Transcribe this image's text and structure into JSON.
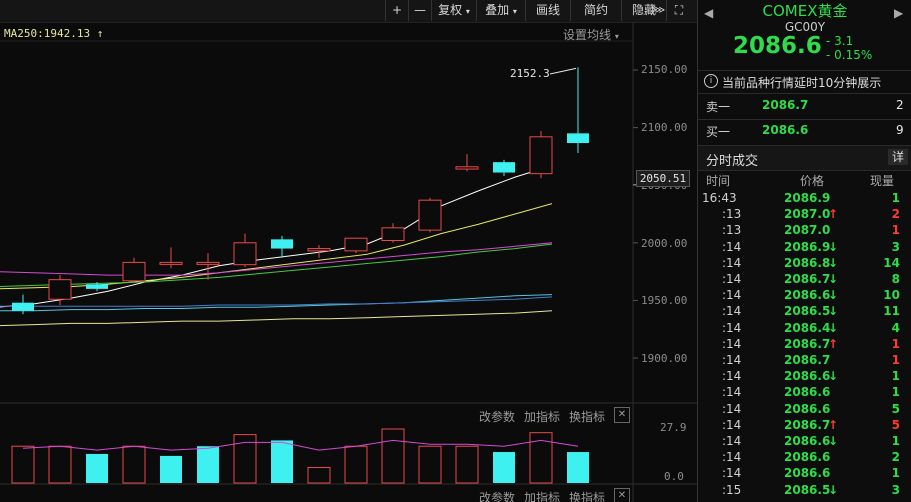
{
  "toolbar": {
    "zoom_in": "+",
    "zoom_out": "—",
    "fuquan": "复权",
    "overlay": "叠加",
    "draw": "画线",
    "simple": "简约",
    "hide": "隐藏",
    "more": "⋙",
    "fullscreen": "⛶"
  },
  "ma_label": "MA250:1942.13",
  "settings_label": "设置均线",
  "price_axis": [
    "2150.00",
    "2100.00",
    "2050.00",
    "2000.00",
    "1950.00",
    "1900.00"
  ],
  "crosshair_price": "2050.51",
  "max_annotation": "2152.3",
  "volume_axis": [
    "27.9",
    "0.0"
  ],
  "indicator_buttons": {
    "change_params": "改参数",
    "add_indicator": "加指标",
    "switch_indicator": "换指标",
    "close": "✕"
  },
  "chart_data": {
    "type": "candlestick",
    "ylim": [
      1880,
      2170
    ],
    "candles": [
      {
        "o": 1948,
        "h": 1955,
        "l": 1938,
        "c": 1941
      },
      {
        "o": 1951,
        "h": 1972,
        "l": 1946,
        "c": 1968
      },
      {
        "o": 1964,
        "h": 1966,
        "l": 1958,
        "c": 1960
      },
      {
        "o": 1967,
        "h": 1987,
        "l": 1965,
        "c": 1983
      },
      {
        "o": 1983,
        "h": 1996,
        "l": 1978,
        "c": 1983
      },
      {
        "o": 1983,
        "h": 1991,
        "l": 1968,
        "c": 1983
      },
      {
        "o": 1981,
        "h": 2008,
        "l": 1979,
        "c": 2000
      },
      {
        "o": 2003,
        "h": 2006,
        "l": 1987,
        "c": 1995
      },
      {
        "o": 1993,
        "h": 1998,
        "l": 1987,
        "c": 1995
      },
      {
        "o": 1993,
        "h": 2004,
        "l": 1991,
        "c": 2004
      },
      {
        "o": 2002,
        "h": 2017,
        "l": 2000,
        "c": 2013
      },
      {
        "o": 2011,
        "h": 2039,
        "l": 2009,
        "c": 2037
      },
      {
        "o": 2064,
        "h": 2077,
        "l": 2062,
        "c": 2066
      },
      {
        "o": 2070,
        "h": 2072,
        "l": 2058,
        "c": 2061
      },
      {
        "o": 2060,
        "h": 2097,
        "l": 2056,
        "c": 2092
      },
      {
        "o": 2095,
        "h": 2152.3,
        "l": 2078,
        "c": 2086.6
      }
    ],
    "ma_lines": [
      {
        "color": "#ffffff",
        "values": [
          1944,
          1947,
          1952,
          1958,
          1966,
          1972,
          1980,
          1985,
          1989,
          1993,
          1999,
          2012,
          2032,
          2045,
          2057,
          2067
        ]
      },
      {
        "color": "#e8e85a",
        "values": [
          1960,
          1961,
          1962,
          1964,
          1967,
          1970,
          1974,
          1978,
          1982,
          1986,
          1990,
          1998,
          2008,
          2016,
          2025,
          2034
        ]
      },
      {
        "color": "#d44ad4",
        "values": [
          1975,
          1974,
          1973,
          1972,
          1972,
          1972,
          1974,
          1977,
          1980,
          1983,
          1986,
          1989,
          1992,
          1994,
          1997,
          2000
        ]
      },
      {
        "color": "#46c846",
        "values": [
          1962,
          1963,
          1964,
          1965,
          1966,
          1968,
          1970,
          1973,
          1976,
          1979,
          1982,
          1985,
          1988,
          1992,
          1995,
          1999
        ]
      },
      {
        "color": "#50c8dc",
        "values": [
          1941,
          1941,
          1942,
          1942,
          1943,
          1943,
          1944,
          1944,
          1945,
          1946,
          1947,
          1948,
          1950,
          1952,
          1954,
          1955
        ]
      },
      {
        "color": "#4a7ad0",
        "values": [
          1945,
          1945,
          1945,
          1945,
          1945,
          1945,
          1946,
          1946,
          1946,
          1947,
          1947,
          1948,
          1949,
          1950,
          1951,
          1953
        ]
      },
      {
        "color": "#e6e696",
        "values": [
          1928,
          1929,
          1930,
          1930,
          1931,
          1932,
          1932,
          1933,
          1934,
          1934,
          1935,
          1936,
          1937,
          1938,
          1939,
          1941
        ]
      }
    ],
    "volumes": [
      {
        "v": 19,
        "up": true
      },
      {
        "v": 19,
        "up": true
      },
      {
        "v": 15,
        "up": false
      },
      {
        "v": 19,
        "up": true
      },
      {
        "v": 14,
        "up": false
      },
      {
        "v": 19,
        "up": false
      },
      {
        "v": 25,
        "up": true
      },
      {
        "v": 22,
        "up": false
      },
      {
        "v": 8,
        "up": true
      },
      {
        "v": 19,
        "up": true
      },
      {
        "v": 27.9,
        "up": true
      },
      {
        "v": 19,
        "up": true
      },
      {
        "v": 19,
        "up": true
      },
      {
        "v": 16,
        "up": false
      },
      {
        "v": 26,
        "up": true
      },
      {
        "v": 16,
        "up": false
      }
    ],
    "vol_ylim": [
      0,
      27.9
    ],
    "vol_line": [
      18,
      19,
      17,
      19,
      17,
      18,
      21,
      21,
      17,
      19,
      22,
      20,
      20,
      19,
      22,
      19
    ]
  },
  "quote": {
    "name": "COMEX黄金",
    "code": "GC00Y",
    "price": "2086.6",
    "change": "- 3.1",
    "change_pct": "- 0.15%",
    "notice": "当前品种行情延时10分钟展示",
    "sell_label": "卖一",
    "sell_price": "2086.7",
    "sell_qty": "2",
    "buy_label": "买一",
    "buy_price": "2086.6",
    "buy_qty": "9",
    "ticks_title": "分时成交",
    "detail": "详",
    "col_time": "时间",
    "col_price": "价格",
    "col_qty": "现量",
    "colors": {
      "up": "#ff3b30",
      "down": "#2fdc4a"
    }
  },
  "ticks": [
    {
      "t": "16:43",
      "p": "2086.9",
      "d": "",
      "q": "1",
      "qc": "green"
    },
    {
      "t": ":13",
      "p": "2087.0",
      "d": "up",
      "q": "2",
      "qc": "red"
    },
    {
      "t": ":13",
      "p": "2087.0",
      "d": "",
      "q": "1",
      "qc": "red"
    },
    {
      "t": ":14",
      "p": "2086.9",
      "d": "down",
      "q": "3",
      "qc": "green"
    },
    {
      "t": ":14",
      "p": "2086.8",
      "d": "down",
      "q": "14",
      "qc": "green"
    },
    {
      "t": ":14",
      "p": "2086.7",
      "d": "down",
      "q": "8",
      "qc": "green"
    },
    {
      "t": ":14",
      "p": "2086.6",
      "d": "down",
      "q": "10",
      "qc": "green"
    },
    {
      "t": ":14",
      "p": "2086.5",
      "d": "down",
      "q": "11",
      "qc": "green"
    },
    {
      "t": ":14",
      "p": "2086.4",
      "d": "down",
      "q": "4",
      "qc": "green"
    },
    {
      "t": ":14",
      "p": "2086.7",
      "d": "up",
      "q": "1",
      "qc": "red"
    },
    {
      "t": ":14",
      "p": "2086.7",
      "d": "",
      "q": "1",
      "qc": "red"
    },
    {
      "t": ":14",
      "p": "2086.6",
      "d": "down",
      "q": "1",
      "qc": "green"
    },
    {
      "t": ":14",
      "p": "2086.6",
      "d": "",
      "q": "1",
      "qc": "green"
    },
    {
      "t": ":14",
      "p": "2086.6",
      "d": "",
      "q": "5",
      "qc": "green"
    },
    {
      "t": ":14",
      "p": "2086.7",
      "d": "up",
      "q": "5",
      "qc": "red"
    },
    {
      "t": ":14",
      "p": "2086.6",
      "d": "down",
      "q": "1",
      "qc": "green"
    },
    {
      "t": ":14",
      "p": "2086.6",
      "d": "",
      "q": "2",
      "qc": "green"
    },
    {
      "t": ":14",
      "p": "2086.6",
      "d": "",
      "q": "1",
      "qc": "green"
    },
    {
      "t": ":15",
      "p": "2086.5",
      "d": "down",
      "q": "3",
      "qc": "green"
    }
  ]
}
